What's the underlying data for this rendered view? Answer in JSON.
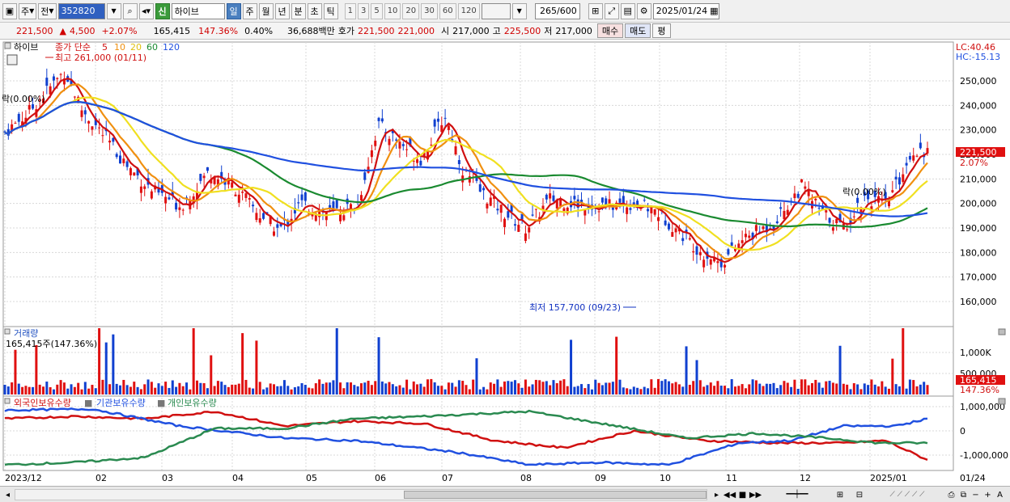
{
  "toolbar": {
    "market_label": "주",
    "type_label": "전",
    "code": "352820",
    "new_badge": "신",
    "stock_name": "하이브",
    "periods": [
      "일",
      "주",
      "월",
      "년",
      "분",
      "초",
      "틱"
    ],
    "active_period": "일",
    "intervals": [
      "1",
      "3",
      "5",
      "10",
      "20",
      "30",
      "60",
      "120"
    ],
    "count": "265",
    "count_max": "/600",
    "date": "2025/01/24"
  },
  "quote": {
    "price": "221,500",
    "change_arrow": "▲",
    "change": "4,500",
    "change_pct": "+2.07%",
    "volume": "165,415",
    "volume_ratio": "147.36%",
    "turnover": "0.40%",
    "amount": "36,688백만",
    "bid_label": "호가",
    "ask_price": "221,500",
    "bid_price": "221,000",
    "open_label": "시",
    "open": "217,000",
    "high_label": "고",
    "high": "225,500",
    "low_label": "저",
    "low": "217,000",
    "buy_button": "매수",
    "sell_button": "매도",
    "eval_button": "평"
  },
  "price_panel": {
    "name": "하이브",
    "legend_main": "종가 단순",
    "ma_periods": [
      "5",
      "10",
      "20",
      "60",
      "120"
    ],
    "ma_colors": [
      "#d01010",
      "#f09010",
      "#f0e020",
      "#1a8a30",
      "#2050e0"
    ],
    "high_annotation": "최고 261,000 (01/11)",
    "low_annotation": "최저 157,700 (09/23)",
    "left_label": "락(0.00%)",
    "mid_label": "락(0.00%)",
    "lc": "LC:40.46",
    "hc": "HC:-15.13",
    "current_price": "221,500",
    "current_pct": "2.07%",
    "y_ticks": [
      "250,000",
      "240,000",
      "230,000",
      "220,000",
      "210,000",
      "200,000",
      "190,000",
      "180,000",
      "170,000",
      "160,000"
    ]
  },
  "volume_panel": {
    "title": "거래량",
    "value": "165,415주(147.36%)",
    "y_ticks": [
      "1,000K",
      "500,000"
    ],
    "current": "165,415",
    "current_pct": "147.36%"
  },
  "holding_panel": {
    "legends": [
      "외국인보유수량",
      "기관보유수량",
      "개인보유수량"
    ],
    "colors": [
      "#d01010",
      "#2050e0",
      "#2a8a50"
    ],
    "y_ticks": [
      "1,000,000",
      "0",
      "-1,000,000"
    ]
  },
  "x_axis": [
    "2023/12",
    "02",
    "03",
    "04",
    "05",
    "06",
    "07",
    "08",
    "09",
    "10",
    "11",
    "12",
    "2025/01"
  ],
  "x_axis_right": "01/24"
}
